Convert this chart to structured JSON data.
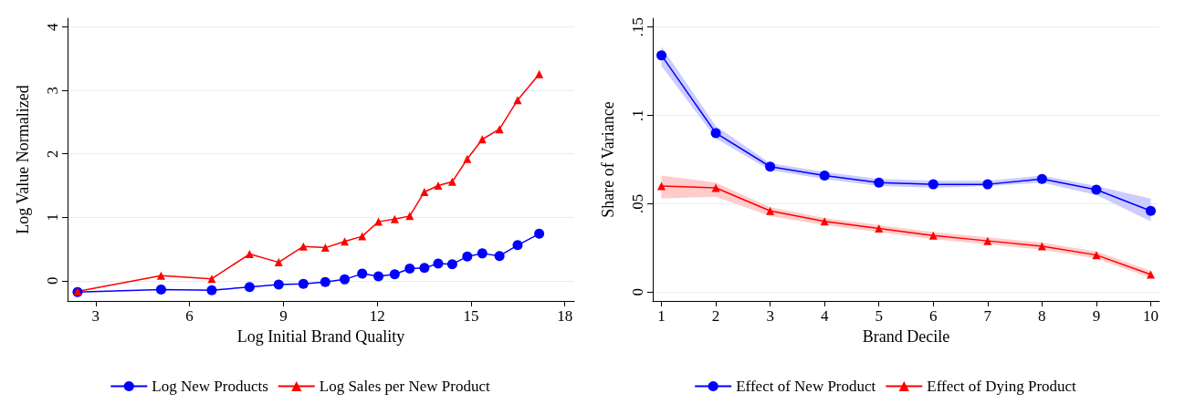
{
  "chart_data": [
    {
      "type": "line",
      "xlabel": "Log Initial Brand Quality",
      "ylabel": "Log Value Normalized",
      "x": [
        2.42,
        5.09,
        6.71,
        7.92,
        8.85,
        9.64,
        10.34,
        10.96,
        11.52,
        12.04,
        12.56,
        13.04,
        13.51,
        13.95,
        14.4,
        14.88,
        15.36,
        15.91,
        16.49,
        17.18
      ],
      "series": [
        {
          "name": "Log New Products",
          "color": "#0000ff",
          "marker": "circle",
          "values": [
            -0.18,
            -0.14,
            -0.15,
            -0.1,
            -0.06,
            -0.05,
            -0.02,
            0.02,
            0.11,
            0.07,
            0.1,
            0.19,
            0.2,
            0.27,
            0.26,
            0.38,
            0.43,
            0.39,
            0.56,
            0.74
          ]
        },
        {
          "name": "Log Sales per New Product",
          "color": "#ff0000",
          "marker": "triangle",
          "values": [
            -0.17,
            0.08,
            0.03,
            0.42,
            0.29,
            0.54,
            0.52,
            0.62,
            0.7,
            0.93,
            0.97,
            1.02,
            1.4,
            1.5,
            1.56,
            1.92,
            2.23,
            2.39,
            2.85,
            3.26
          ]
        }
      ],
      "xlim": [
        2.1,
        18.3
      ],
      "xticks": [
        3,
        6,
        9,
        12,
        15,
        18
      ],
      "ylim": [
        -0.32,
        4.14
      ],
      "yticks": [
        0,
        1,
        2,
        3,
        4
      ],
      "grid": "y",
      "legend": "bottom"
    },
    {
      "type": "line",
      "xlabel": "Brand Decile",
      "ylabel": "Share of Variance",
      "x": [
        1,
        2,
        3,
        4,
        5,
        6,
        7,
        8,
        9,
        10
      ],
      "series": [
        {
          "name": "Effect of New Product",
          "color": "#0000ff",
          "marker": "circle",
          "values": [
            0.134,
            0.09,
            0.071,
            0.066,
            0.062,
            0.061,
            0.061,
            0.064,
            0.058,
            0.046
          ],
          "lower": [
            0.128,
            0.087,
            0.069,
            0.064,
            0.06,
            0.059,
            0.06,
            0.062,
            0.055,
            0.04
          ],
          "upper": [
            0.139,
            0.094,
            0.073,
            0.068,
            0.064,
            0.063,
            0.063,
            0.066,
            0.06,
            0.053
          ]
        },
        {
          "name": "Effect of Dying Product",
          "color": "#ff0000",
          "marker": "triangle",
          "values": [
            0.06,
            0.059,
            0.046,
            0.04,
            0.036,
            0.032,
            0.029,
            0.026,
            0.021,
            0.01
          ],
          "lower": [
            0.053,
            0.054,
            0.043,
            0.038,
            0.034,
            0.03,
            0.027,
            0.024,
            0.019,
            0.008
          ],
          "upper": [
            0.066,
            0.062,
            0.048,
            0.042,
            0.038,
            0.034,
            0.031,
            0.028,
            0.023,
            0.012
          ]
        }
      ],
      "xlim": [
        0.84,
        10.16
      ],
      "xticks": [
        1,
        2,
        3,
        4,
        5,
        6,
        7,
        8,
        9,
        10
      ],
      "ylim": [
        -0.005,
        0.155
      ],
      "yticks": [
        0,
        {
          "value": 0.05,
          "label": ".05"
        },
        {
          "value": 0.1,
          "label": ".1"
        },
        {
          "value": 0.15,
          "label": ".15"
        }
      ],
      "grid": "y",
      "legend": "bottom"
    }
  ]
}
